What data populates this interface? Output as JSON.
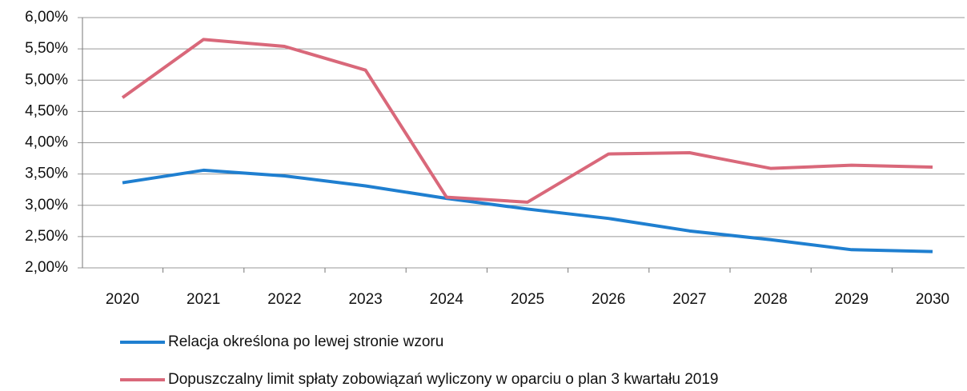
{
  "chart_data": {
    "type": "line",
    "categories": [
      "2020",
      "2021",
      "2022",
      "2023",
      "2024",
      "2025",
      "2026",
      "2027",
      "2028",
      "2029",
      "2030"
    ],
    "series": [
      {
        "name": "Relacja określona po lewej stronie wzoru",
        "color": "#1f7fd0",
        "values": [
          3.36,
          3.56,
          3.47,
          3.31,
          3.11,
          2.94,
          2.79,
          2.59,
          2.45,
          2.29,
          2.26
        ]
      },
      {
        "name": "Dopuszczalny limit spłaty zobowiązań wyliczony w oparciu o plan 3 kwartału 2019",
        "color": "#d9687a",
        "values": [
          4.72,
          5.65,
          5.54,
          5.16,
          3.13,
          3.05,
          3.82,
          3.84,
          3.59,
          3.64,
          3.61
        ]
      }
    ],
    "ylim": [
      2,
      6
    ],
    "yticks": [
      {
        "value": 2,
        "label": "2,00%"
      },
      {
        "value": 2.5,
        "label": "2,50%"
      },
      {
        "value": 3,
        "label": "3,00%"
      },
      {
        "value": 3.5,
        "label": "3,50%"
      },
      {
        "value": 4,
        "label": "4,00%"
      },
      {
        "value": 4.5,
        "label": "4,50%"
      },
      {
        "value": 5,
        "label": "5,00%"
      },
      {
        "value": 5.5,
        "label": "5,50%"
      },
      {
        "value": 6,
        "label": "6,00%"
      }
    ],
    "grid": true,
    "legend": "bottom"
  }
}
